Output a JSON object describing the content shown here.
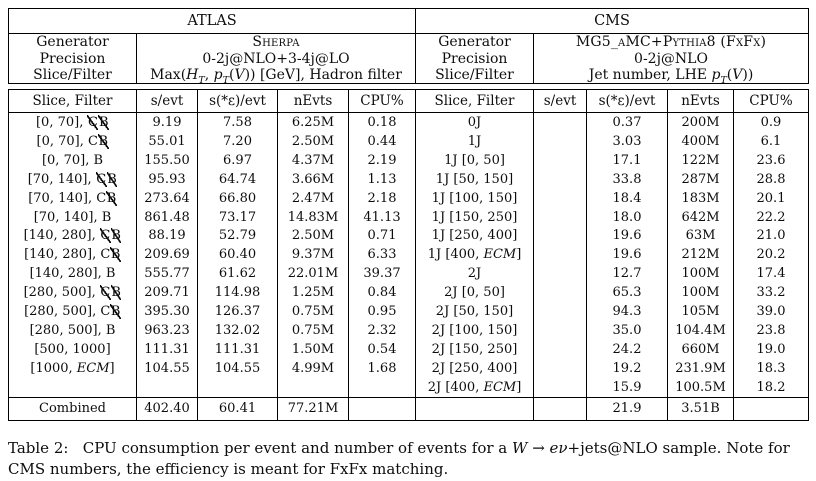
{
  "caption_html": "Table 2: &nbsp;&nbsp;CPU consumption per event and number of events for a <i>W</i> &rarr; <i>e&nu;</i>+jets@NLO sample. Note for CMS numbers, the efficiency is meant for FxFx matching.",
  "labels": {
    "generator": "Generator",
    "precision": "Precision",
    "slice_filter": "Slice/Filter"
  },
  "columns": [
    "Slice, Filter",
    "s/evt",
    "s(*ε)/evt",
    "nEvts",
    "CPU%"
  ],
  "atlas": {
    "title": "ATLAS",
    "generator": "Sherpa",
    "precision": "0-2j@NLO+3-4j@LO",
    "slice_filter_html": "Max(<i>H</i><sub><i>T</i></sub>, <i>p</i><sub><i>T</i></sub>(<i>V</i>)) [GeV], Hadron filter",
    "rows": [
      {
        "label_html": "[0, 70], <span class=\"cx\">C</span><span class=\"cx\">B</span>",
        "s": "9.19",
        "se": "7.58",
        "n": "6.25M",
        "cpu": "0.18"
      },
      {
        "label_html": "[0, 70], C<span class=\"cx\">B</span>",
        "s": "55.01",
        "se": "7.20",
        "n": "2.50M",
        "cpu": "0.44"
      },
      {
        "label_html": "[0, 70], B",
        "s": "155.50",
        "se": "6.97",
        "n": "4.37M",
        "cpu": "2.19"
      },
      {
        "label_html": "[70, 140], <span class=\"cx\">C</span><span class=\"cx\">B</span>",
        "s": "95.93",
        "se": "64.74",
        "n": "3.66M",
        "cpu": "1.13"
      },
      {
        "label_html": "[70, 140], C<span class=\"cx\">B</span>",
        "s": "273.64",
        "se": "66.80",
        "n": "2.47M",
        "cpu": "2.18"
      },
      {
        "label_html": "[70, 140], B",
        "s": "861.48",
        "se": "73.17",
        "n": "14.83M",
        "cpu": "41.13"
      },
      {
        "label_html": "[140, 280], <span class=\"cx\">C</span><span class=\"cx\">B</span>",
        "s": "88.19",
        "se": "52.79",
        "n": "2.50M",
        "cpu": "0.71"
      },
      {
        "label_html": "[140, 280], C<span class=\"cx\">B</span>",
        "s": "209.69",
        "se": "60.40",
        "n": "9.37M",
        "cpu": "6.33"
      },
      {
        "label_html": "[140, 280], B",
        "s": "555.77",
        "se": "61.62",
        "n": "22.01M",
        "cpu": "39.37"
      },
      {
        "label_html": "[280, 500], <span class=\"cx\">C</span><span class=\"cx\">B</span>",
        "s": "209.71",
        "se": "114.98",
        "n": "1.25M",
        "cpu": "0.84"
      },
      {
        "label_html": "[280, 500], C<span class=\"cx\">B</span>",
        "s": "395.30",
        "se": "126.37",
        "n": "0.75M",
        "cpu": "0.95"
      },
      {
        "label_html": "[280, 500], B",
        "s": "963.23",
        "se": "132.02",
        "n": "0.75M",
        "cpu": "2.32"
      },
      {
        "label_html": "[500, 1000]",
        "s": "111.31",
        "se": "111.31",
        "n": "1.50M",
        "cpu": "0.54"
      },
      {
        "label_html": "[1000, <i>ECM</i>]",
        "s": "104.55",
        "se": "104.55",
        "n": "4.99M",
        "cpu": "1.68"
      },
      null
    ],
    "combined": {
      "label": "Combined",
      "s": "402.40",
      "se": "60.41",
      "n": "77.21M",
      "cpu": ""
    }
  },
  "cms": {
    "title": "CMS",
    "generator": "MG5_aMC+Pythia8 (FxFx)",
    "precision": "0-2j@NLO",
    "slice_filter_html": "Jet number, LHE <i>p</i><sub><i>T</i></sub>(<i>V</i>))",
    "rows": [
      {
        "label_html": "0J",
        "s": "",
        "se": "0.37",
        "n": "200M",
        "cpu": "0.9"
      },
      {
        "label_html": "1J",
        "s": "",
        "se": "3.03",
        "n": "400M",
        "cpu": "6.1"
      },
      {
        "label_html": "1J [0, 50]",
        "s": "",
        "se": "17.1",
        "n": "122M",
        "cpu": "23.6"
      },
      {
        "label_html": "1J [50, 150]",
        "s": "",
        "se": "33.8",
        "n": "287M",
        "cpu": "28.8"
      },
      {
        "label_html": "1J [100, 150]",
        "s": "",
        "se": "18.4",
        "n": "183M",
        "cpu": "20.1"
      },
      {
        "label_html": "1J [150, 250]",
        "s": "",
        "se": "18.0",
        "n": "642M",
        "cpu": "22.2"
      },
      {
        "label_html": "1J [250, 400]",
        "s": "",
        "se": "19.6",
        "n": "63M",
        "cpu": "21.0"
      },
      {
        "label_html": "1J [400, <i>ECM</i>]",
        "s": "",
        "se": "19.6",
        "n": "212M",
        "cpu": "20.2"
      },
      {
        "label_html": "2J",
        "s": "",
        "se": "12.7",
        "n": "100M",
        "cpu": "17.4"
      },
      {
        "label_html": "2J [0, 50]",
        "s": "",
        "se": "65.3",
        "n": "100M",
        "cpu": "33.2"
      },
      {
        "label_html": "2J [50, 150]",
        "s": "",
        "se": "94.3",
        "n": "105M",
        "cpu": "39.0"
      },
      {
        "label_html": "2J [100, 150]",
        "s": "",
        "se": "35.0",
        "n": "104.4M",
        "cpu": "23.8"
      },
      {
        "label_html": "2J [150, 250]",
        "s": "",
        "se": "24.2",
        "n": "660M",
        "cpu": "19.0"
      },
      {
        "label_html": "2J [250, 400]",
        "s": "",
        "se": "19.2",
        "n": "231.9M",
        "cpu": "18.3"
      },
      {
        "label_html": "2J [400, <i>ECM</i>]",
        "s": "",
        "se": "15.9",
        "n": "100.5M",
        "cpu": "18.2"
      }
    ],
    "combined": {
      "label": "",
      "s": "",
      "se": "21.9",
      "n": "3.51B",
      "cpu": ""
    }
  }
}
